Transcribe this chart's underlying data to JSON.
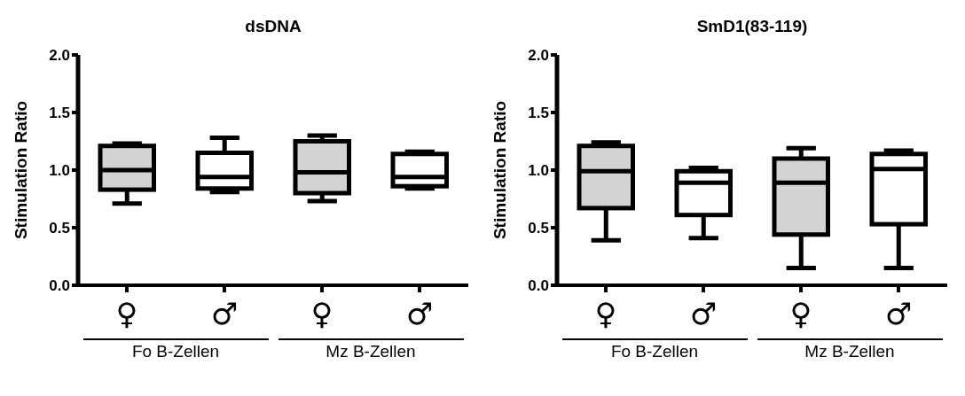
{
  "chart_data": [
    {
      "type": "box",
      "title": "dsDNA",
      "ylabel": "Stimulation Ratio",
      "categories": [
        "♀",
        "♂",
        "♀",
        "♂"
      ],
      "colors": [
        "#d3d3d3",
        "#ffffff",
        "#d3d3d3",
        "#ffffff"
      ],
      "ylim": [
        0,
        2
      ],
      "yticks": [
        {
          "value": 0,
          "label": "0.0"
        },
        {
          "value": 0.5,
          "label": "0.5"
        },
        {
          "value": 1,
          "label": "1.0"
        },
        {
          "value": 1.5,
          "label": "1.5"
        },
        {
          "value": 2,
          "label": "2.0"
        }
      ],
      "grid": false,
      "legend": false,
      "boxes": [
        {
          "low": 0.71,
          "q1": 0.83,
          "median": 1.0,
          "q3": 1.21,
          "high": 1.23
        },
        {
          "low": 0.81,
          "q1": 0.84,
          "median": 0.94,
          "q3": 1.15,
          "high": 1.28
        },
        {
          "low": 0.73,
          "q1": 0.8,
          "median": 0.98,
          "q3": 1.25,
          "high": 1.3
        },
        {
          "low": 0.84,
          "q1": 0.86,
          "median": 0.94,
          "q3": 1.14,
          "high": 1.16
        }
      ],
      "annotations": [
        "Fo B-Zellen",
        "Mz B-Zellen"
      ]
    },
    {
      "type": "box",
      "title": "SmD1(83-119)",
      "ylabel": "Stimulation Ratio",
      "categories": [
        "♀",
        "♂",
        "♀",
        "♂"
      ],
      "colors": [
        "#d3d3d3",
        "#ffffff",
        "#d3d3d3",
        "#ffffff"
      ],
      "ylim": [
        0,
        2
      ],
      "yticks": [
        {
          "value": 0,
          "label": "0.0"
        },
        {
          "value": 0.5,
          "label": "0.5"
        },
        {
          "value": 1,
          "label": "1.0"
        },
        {
          "value": 1.5,
          "label": "1.5"
        },
        {
          "value": 2,
          "label": "2.0"
        }
      ],
      "grid": false,
      "legend": false,
      "boxes": [
        {
          "low": 0.39,
          "q1": 0.67,
          "median": 0.99,
          "q3": 1.21,
          "high": 1.24
        },
        {
          "low": 0.41,
          "q1": 0.61,
          "median": 0.89,
          "q3": 0.99,
          "high": 1.02
        },
        {
          "low": 0.15,
          "q1": 0.44,
          "median": 0.89,
          "q3": 1.1,
          "high": 1.19
        },
        {
          "low": 0.15,
          "q1": 0.53,
          "median": 1.01,
          "q3": 1.14,
          "high": 1.17
        }
      ],
      "annotations": [
        "Fo B-Zellen",
        "Mz B-Zellen"
      ]
    }
  ]
}
